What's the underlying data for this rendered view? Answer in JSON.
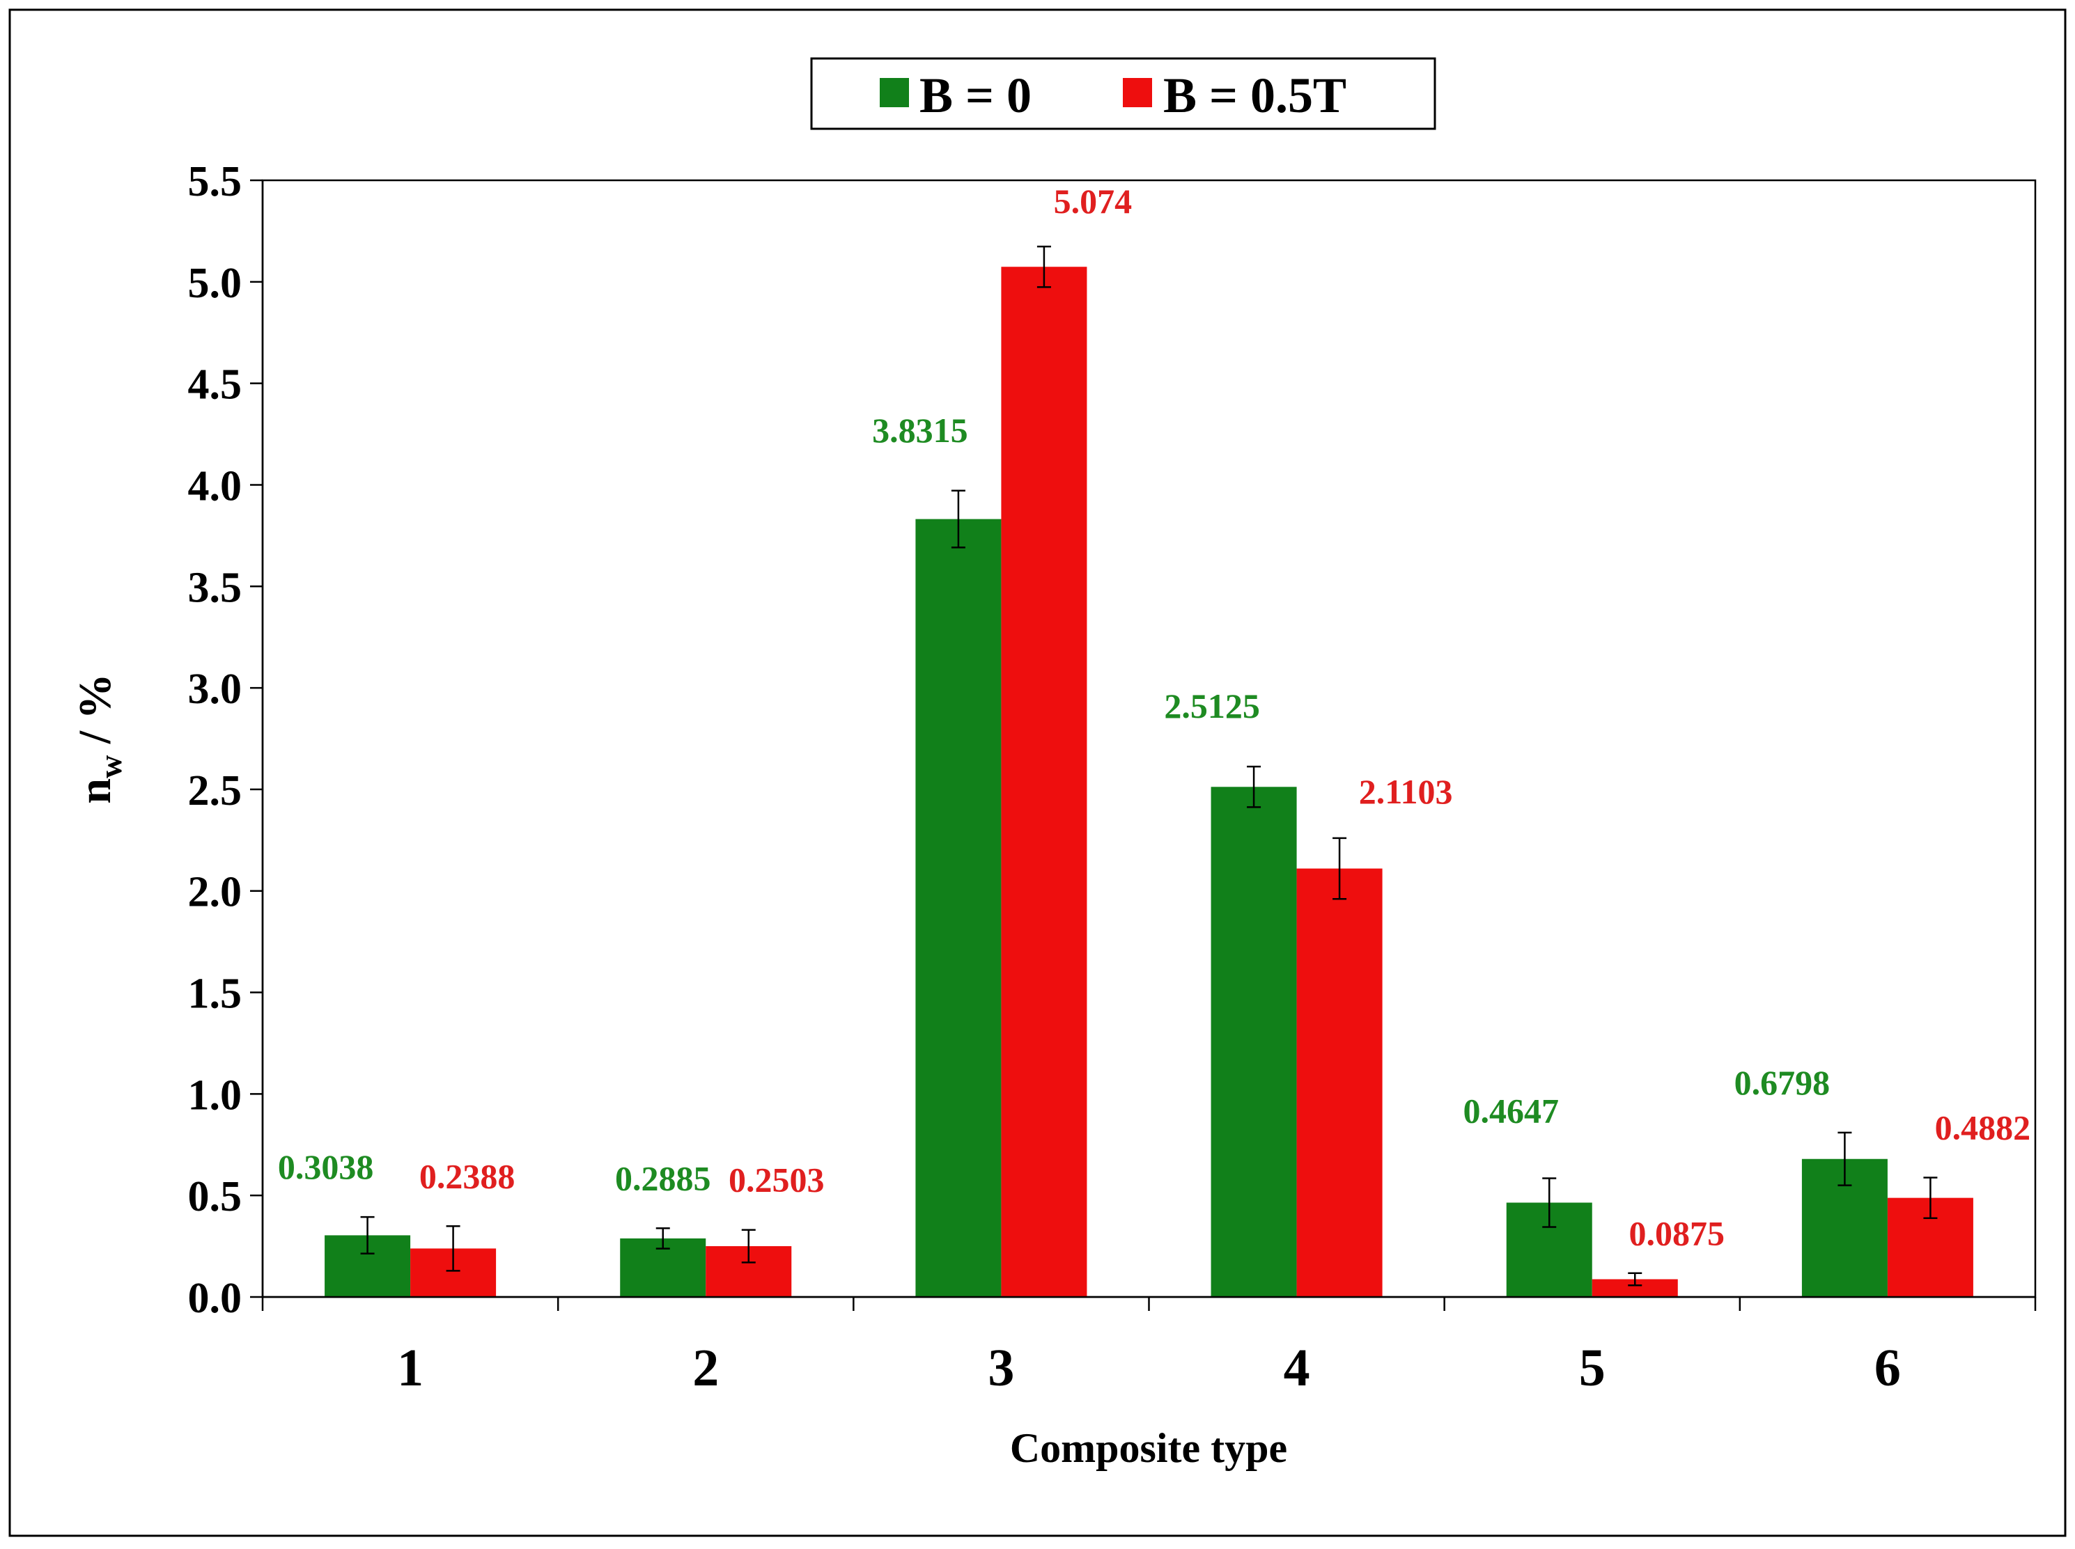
{
  "chart_data": {
    "type": "bar",
    "title": "",
    "xlabel": "Composite type",
    "ylabel_main": "n",
    "ylabel_sub": "w",
    "ylabel_suffix": " / %",
    "ylim": [
      0,
      5.5
    ],
    "yticks": [
      "0.0",
      "0.5",
      "1.0",
      "1.5",
      "2.0",
      "2.5",
      "3.0",
      "3.5",
      "4.0",
      "4.5",
      "5.0",
      "5.5"
    ],
    "categories": [
      "1",
      "2",
      "3",
      "4",
      "5",
      "6"
    ],
    "grid": false,
    "legend_position": "top-center",
    "series": [
      {
        "name": "B = 0",
        "color": "#11801a",
        "label_color": "#1e8b22",
        "values": [
          0.3038,
          0.2885,
          3.8315,
          2.5125,
          0.4647,
          0.6798
        ],
        "labels": [
          "0.3038",
          "0.2885",
          "3.8315",
          "2.5125",
          "0.4647",
          "0.6798"
        ],
        "error": [
          0.09,
          0.05,
          0.14,
          0.1,
          0.12,
          0.13
        ]
      },
      {
        "name": "B = 0.5T",
        "color": "#ee0e0e",
        "label_color": "#e01f1f",
        "values": [
          0.2388,
          0.2503,
          5.074,
          2.1103,
          0.0875,
          0.4882
        ],
        "labels": [
          "0.2388",
          "0.2503",
          "5.074",
          "2.1103",
          "0.0875",
          "0.4882"
        ],
        "error": [
          0.11,
          0.08,
          0.1,
          0.15,
          0.03,
          0.1
        ]
      }
    ]
  }
}
